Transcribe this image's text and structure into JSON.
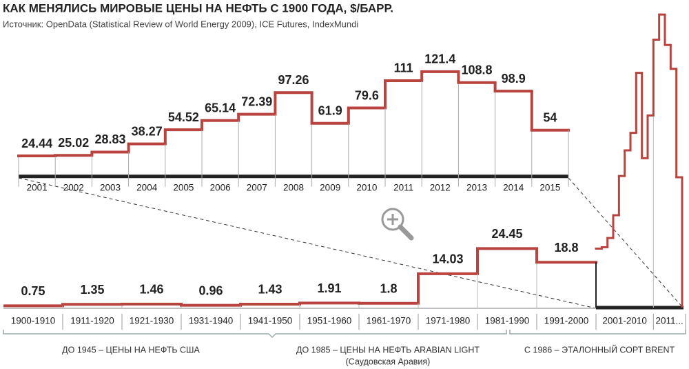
{
  "chart_data": [
    {
      "type": "line",
      "title": "КАК МЕНЯЛИСЬ МИРОВЫЕ ЦЕНЫ НА НЕФТЬ С 1900 ГОДА, $/БАРР.",
      "subtitle": "Источник: OpenData (Statistical Review of World Energy 2009), ICE Futures, IndexMundi",
      "categories": [
        "1900-1910",
        "1911-1920",
        "1921-1930",
        "1931-1940",
        "1941-1950",
        "1951-1960",
        "1961-1970",
        "1971-1980",
        "1981-1990",
        "1991-2000",
        "2001-2010",
        "2011..."
      ],
      "values": [
        0.75,
        1.35,
        1.46,
        0.96,
        1.43,
        1.91,
        1.8,
        14.03,
        24.45,
        18.8,
        null,
        null
      ],
      "color": "#b8433f",
      "annotations": [
        "ДО 1945 – ЦЕНЫ НА НЕФТЬ США",
        "ДО 1985 – ЦЕНЫ НА НЕФТЬ ARABIAN LIGHT",
        "(Саудовская Аравия)",
        "С 1986 – ЭТАЛОННЫЙ СОРТ BRENT"
      ]
    },
    {
      "type": "line",
      "categories": [
        "2001",
        "2002",
        "2003",
        "2004",
        "2005",
        "2006",
        "2007",
        "2008",
        "2009",
        "2010",
        "2011",
        "2012",
        "2013",
        "2014",
        "2015"
      ],
      "values": [
        24.44,
        25.02,
        28.83,
        38.27,
        54.52,
        65.14,
        72.39,
        97.26,
        61.9,
        79.6,
        111,
        121.4,
        108.8,
        98.9,
        54
      ],
      "color": "#b8433f"
    }
  ]
}
